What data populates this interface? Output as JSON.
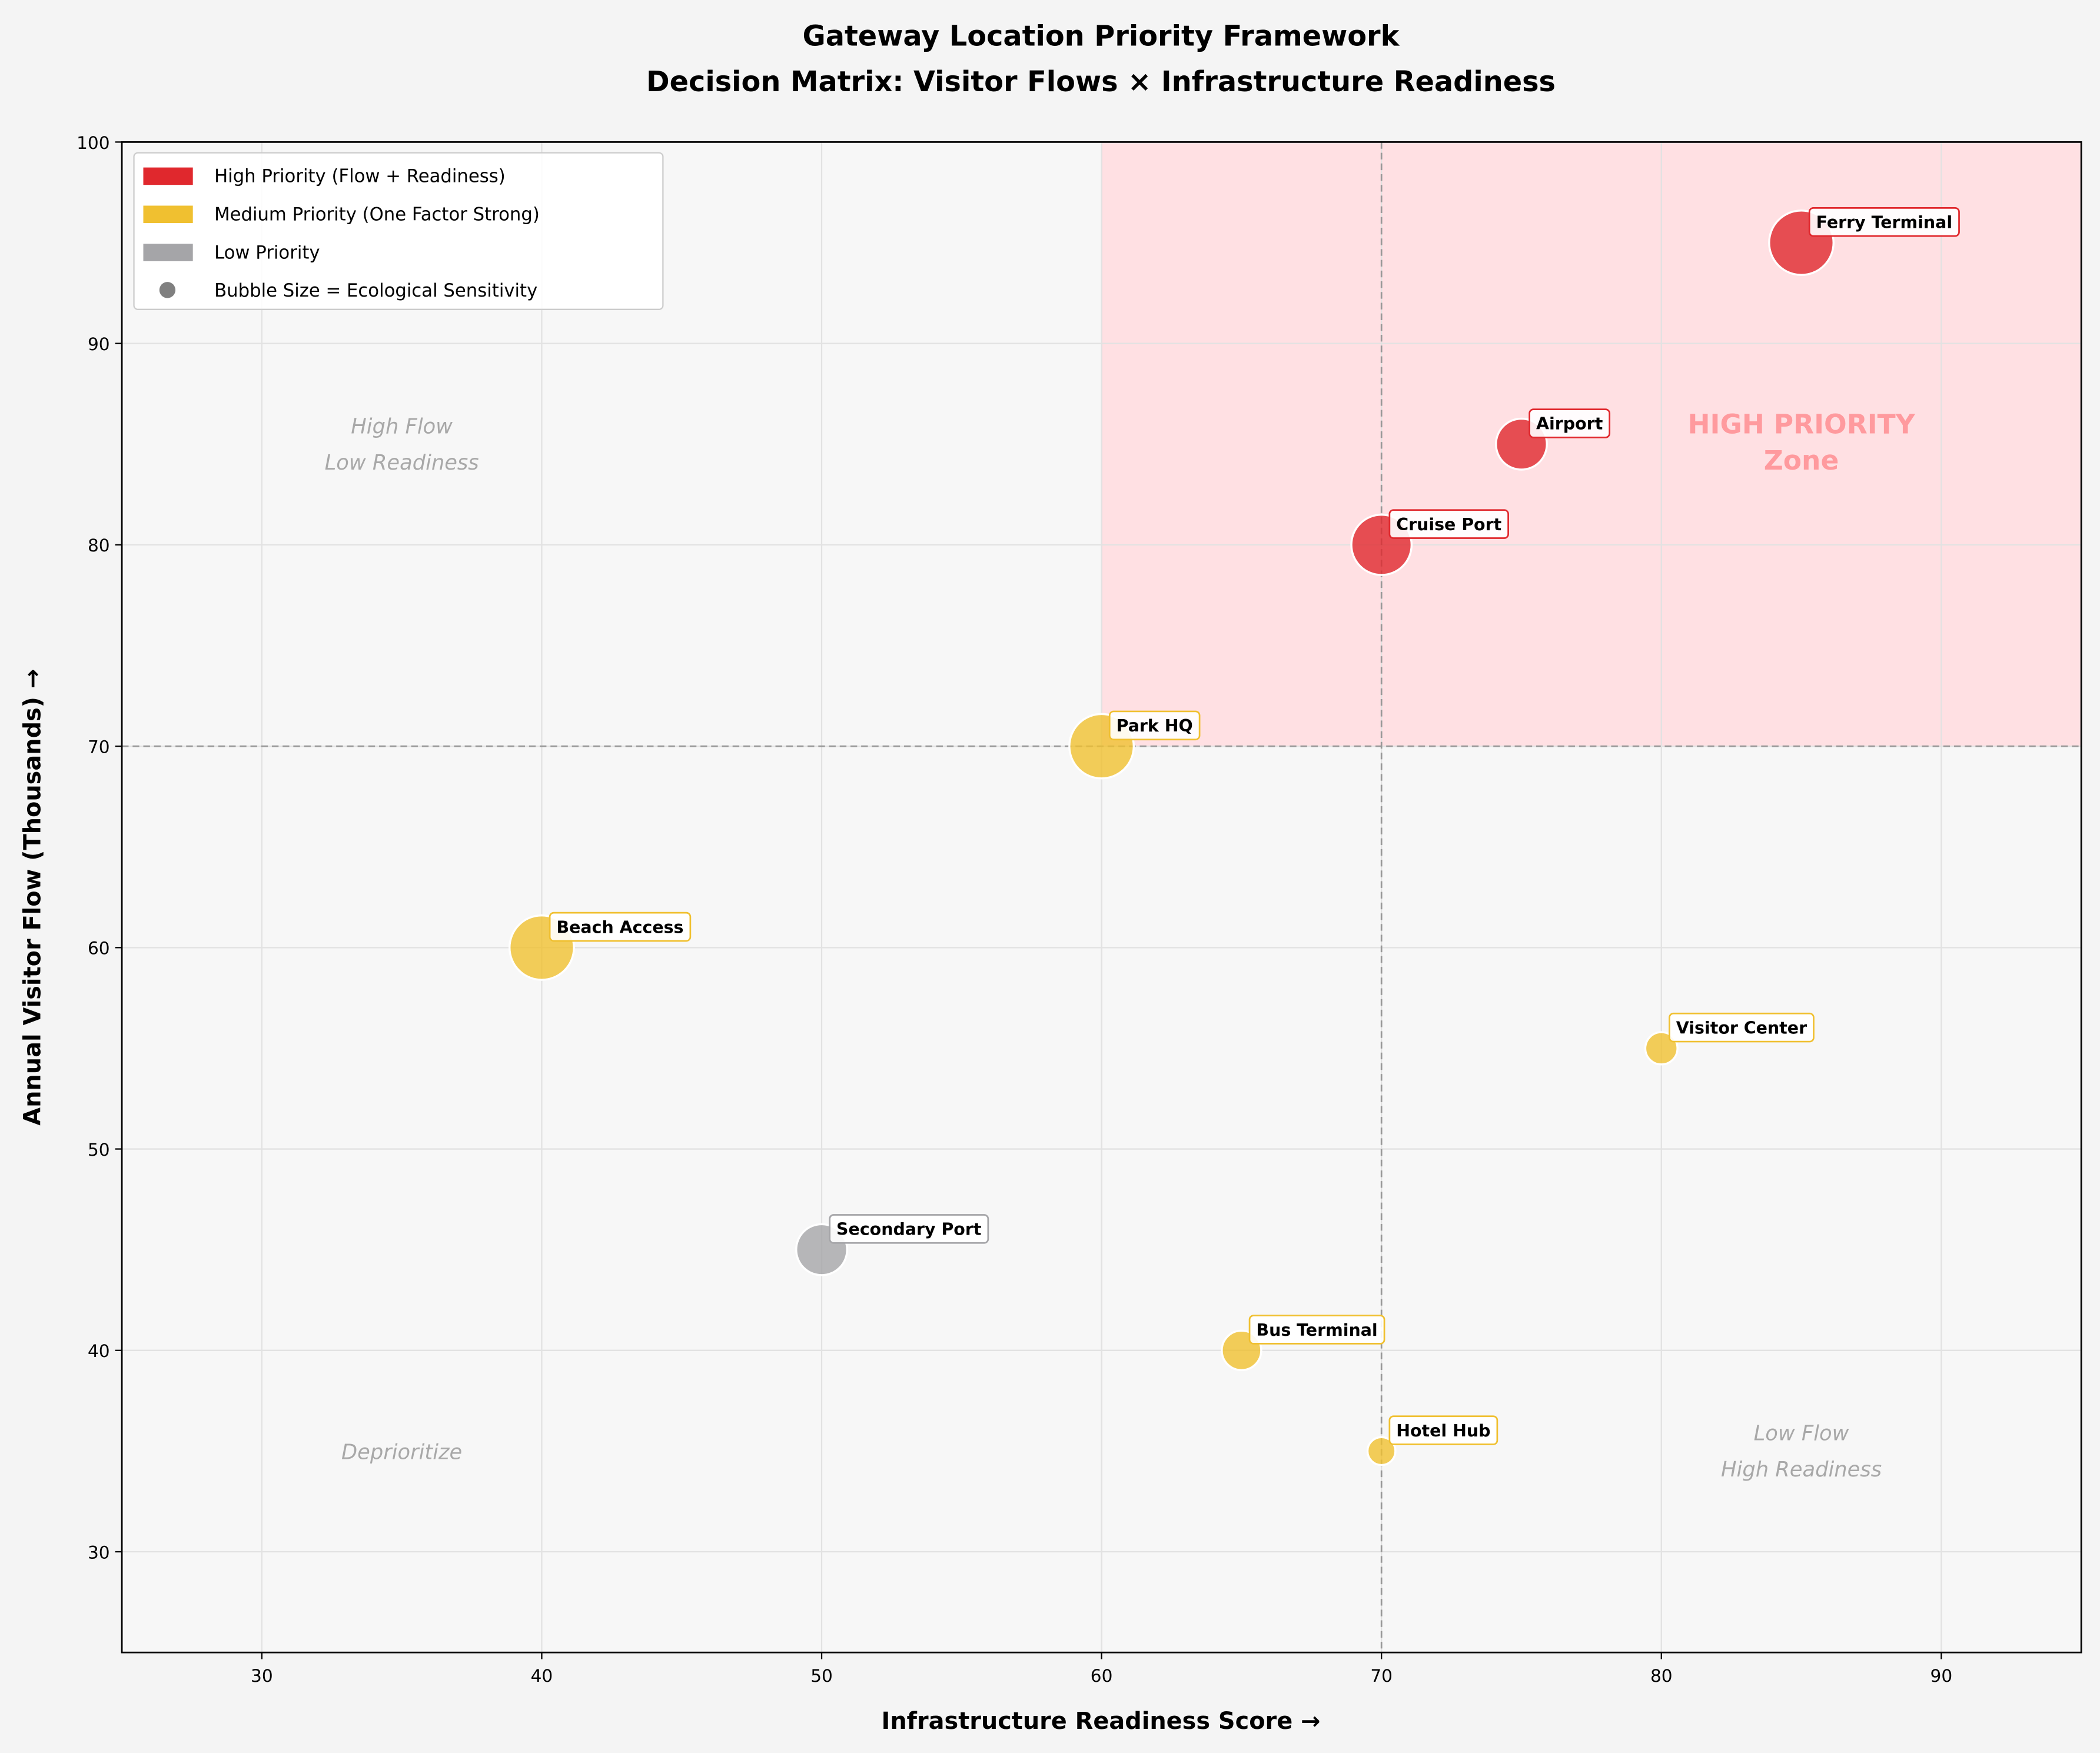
{
  "chart_data": {
    "type": "scatter",
    "title": "Gateway Location Priority Framework",
    "subtitle": "Decision Matrix: Visitor Flows × Infrastructure Readiness",
    "xlabel": "Infrastructure Readiness Score →",
    "ylabel": "Annual Visitor Flow (Thousands) →",
    "xlim": [
      25,
      95
    ],
    "ylim": [
      25,
      100
    ],
    "xticks": [
      30,
      40,
      50,
      60,
      70,
      80,
      90
    ],
    "yticks": [
      30,
      40,
      50,
      60,
      70,
      80,
      90,
      100
    ],
    "grid": true,
    "legend_position": "top-left",
    "thresholds": {
      "x": 70,
      "y": 70
    },
    "high_priority_zone": {
      "x_from": 60,
      "y_from": 70,
      "label_line1": "HIGH PRIORITY",
      "label_line2": "Zone"
    },
    "colors": {
      "high": "#e0282d",
      "medium": "#f0c030",
      "low": "#a5a5a8",
      "zone": "#ffe0e3"
    },
    "legend": [
      {
        "label": "High Priority (Flow + Readiness)",
        "color": "#e0282d",
        "kind": "patch"
      },
      {
        "label": "Medium Priority (One Factor Strong)",
        "color": "#f0c030",
        "kind": "patch"
      },
      {
        "label": "Low Priority",
        "color": "#a5a5a8",
        "kind": "patch"
      },
      {
        "label": "Bubble Size = Ecological Sensitivity",
        "color": "#808080",
        "kind": "dot"
      }
    ],
    "quadrant_labels": [
      {
        "line1": "High Flow",
        "line2": "Low Readiness",
        "x": 35,
        "y": 85
      },
      {
        "line1": "Deprioritize",
        "line2": "",
        "x": 35,
        "y": 35
      },
      {
        "line1": "Low Flow",
        "line2": "High Readiness",
        "x": 85,
        "y": 35
      }
    ],
    "points": [
      {
        "name": "Ferry Terminal",
        "x": 85,
        "y": 95,
        "priority": "high",
        "sensitivity": 8
      },
      {
        "name": "Airport",
        "x": 75,
        "y": 85,
        "priority": "high",
        "sensitivity": 5
      },
      {
        "name": "Cruise Port",
        "x": 70,
        "y": 80,
        "priority": "high",
        "sensitivity": 7
      },
      {
        "name": "Park HQ",
        "x": 60,
        "y": 70,
        "priority": "medium",
        "sensitivity": 8
      },
      {
        "name": "Beach Access",
        "x": 40,
        "y": 60,
        "priority": "medium",
        "sensitivity": 8
      },
      {
        "name": "Visitor Center",
        "x": 80,
        "y": 55,
        "priority": "medium",
        "sensitivity": 2
      },
      {
        "name": "Secondary Port",
        "x": 50,
        "y": 45,
        "priority": "low",
        "sensitivity": 5
      },
      {
        "name": "Bus Terminal",
        "x": 65,
        "y": 40,
        "priority": "medium",
        "sensitivity": 3
      },
      {
        "name": "Hotel Hub",
        "x": 70,
        "y": 35,
        "priority": "medium",
        "sensitivity": 1.5
      }
    ]
  }
}
